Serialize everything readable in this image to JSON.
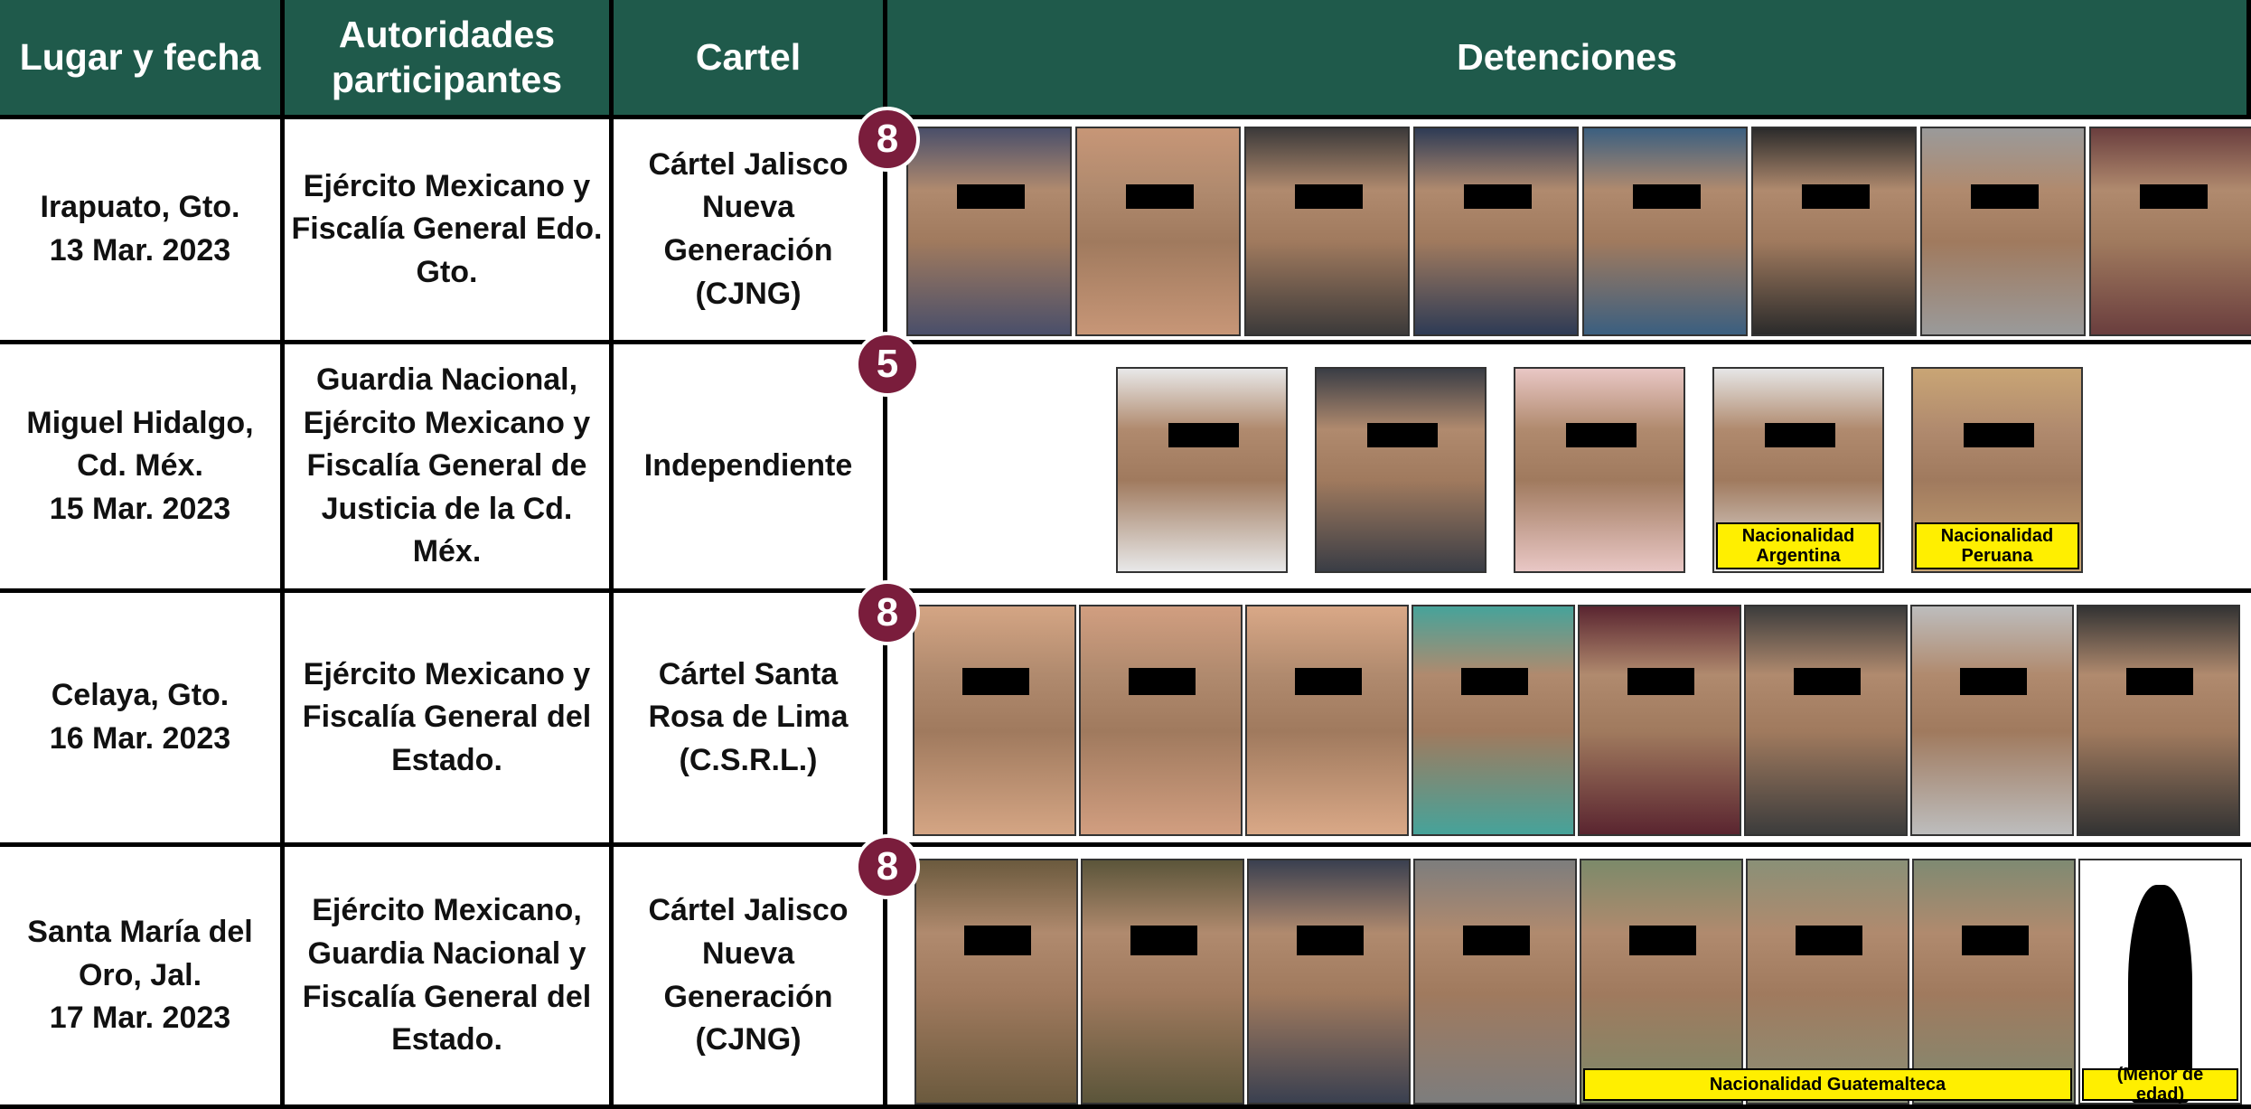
{
  "header": [
    "Lugar y fecha",
    "Autoridades participantes",
    "Cartel",
    "Detenciones"
  ],
  "rows": [
    {
      "place": "Irapuato, Gto.",
      "date": "13 Mar. 2023",
      "authorities": "Ejército Mexicano y Fiscalía General Edo. Gto.",
      "cartel": "Cártel Jalisco Nueva Generación (CJNG)",
      "count": 8,
      "tags": []
    },
    {
      "place": "Miguel Hidalgo, Cd. Méx.",
      "date": "15 Mar. 2023",
      "authorities": "Guardia Nacional, Ejército Mexicano y Fiscalía General de Justicia de la Cd. Méx.",
      "cartel": "Independiente",
      "count": 5,
      "tags": [
        "Nacionalidad Argentina",
        "Nacionalidad Peruana"
      ]
    },
    {
      "place": "Celaya, Gto.",
      "date": "16 Mar. 2023",
      "authorities": "Ejército Mexicano y Fiscalía General del Estado.",
      "cartel": "Cártel Santa Rosa de Lima (C.S.R.L.)",
      "count": 8,
      "tags": []
    },
    {
      "place": "Santa María del Oro, Jal.",
      "date": "17 Mar. 2023",
      "authorities": "Ejército Mexicano, Guardia Nacional y Fiscalía General del Estado.",
      "cartel": "Cártel Jalisco Nueva Generación (CJNG)",
      "count": 8,
      "tags": [
        "Nacionalidad Guatemalteca",
        "(Menor de edad)"
      ]
    }
  ]
}
